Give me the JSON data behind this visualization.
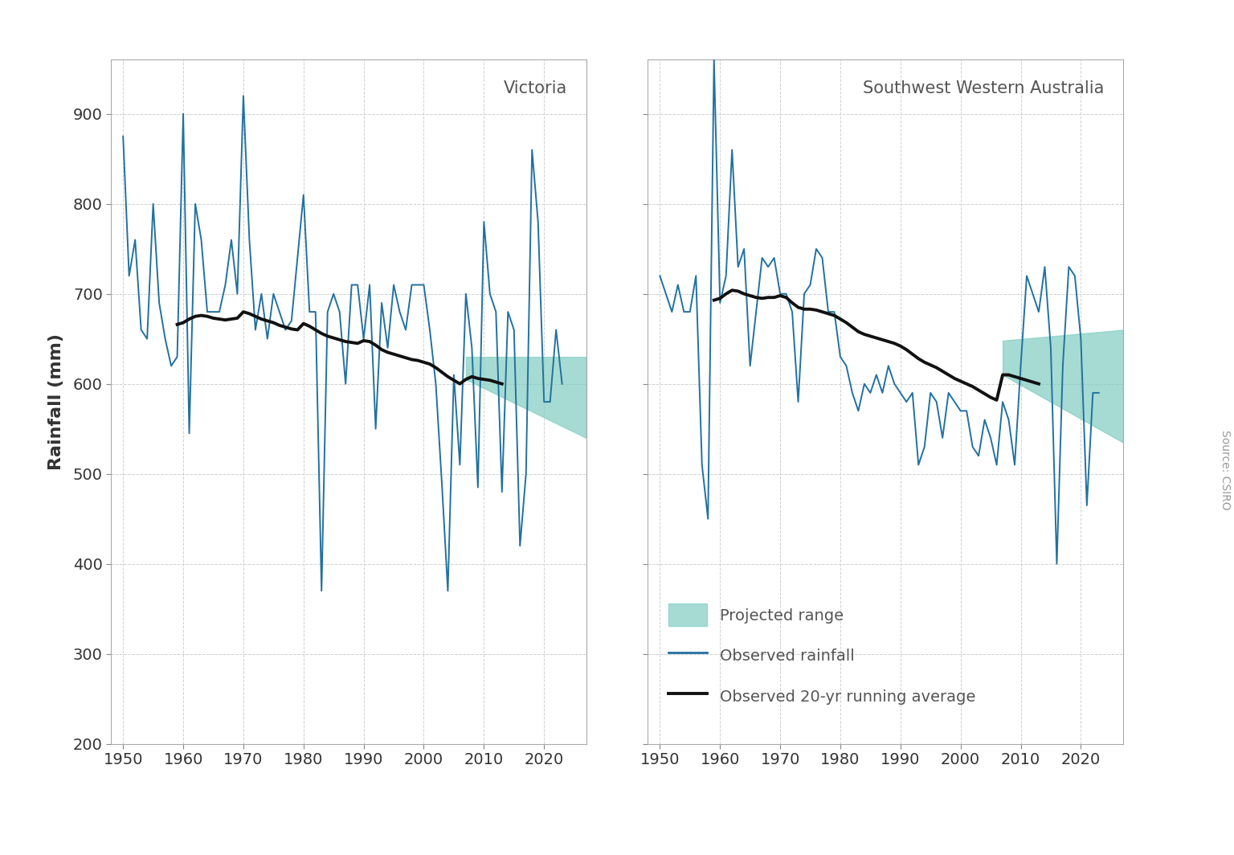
{
  "title_left": "Victoria",
  "title_right": "Southwest Western Australia",
  "ylabel": "Rainfall (mm)",
  "source_text": "Source: CSIRO",
  "ylim": [
    200,
    960
  ],
  "yticks": [
    200,
    300,
    400,
    500,
    600,
    700,
    800,
    900
  ],
  "xlim": [
    1948,
    2027
  ],
  "xticks": [
    1950,
    1960,
    1970,
    1980,
    1990,
    2000,
    2010,
    2020
  ],
  "observed_color": "#2171a0",
  "running_avg_color": "#111111",
  "projected_color": "#80cdc1",
  "background_color": "#ffffff",
  "grid_color": "#d0d0d0",
  "vic_years": [
    1950,
    1951,
    1952,
    1953,
    1954,
    1955,
    1956,
    1957,
    1958,
    1959,
    1960,
    1961,
    1962,
    1963,
    1964,
    1965,
    1966,
    1967,
    1968,
    1969,
    1970,
    1971,
    1972,
    1973,
    1974,
    1975,
    1976,
    1977,
    1978,
    1979,
    1980,
    1981,
    1982,
    1983,
    1984,
    1985,
    1986,
    1987,
    1988,
    1989,
    1990,
    1991,
    1992,
    1993,
    1994,
    1995,
    1996,
    1997,
    1998,
    1999,
    2000,
    2001,
    2002,
    2003,
    2004,
    2005,
    2006,
    2007,
    2008,
    2009,
    2010,
    2011,
    2012,
    2013,
    2014,
    2015,
    2016,
    2017,
    2018,
    2019,
    2020,
    2021,
    2022,
    2023
  ],
  "vic_rainfall": [
    875,
    720,
    760,
    660,
    650,
    800,
    690,
    650,
    620,
    630,
    900,
    545,
    800,
    760,
    680,
    680,
    680,
    710,
    760,
    700,
    920,
    760,
    660,
    700,
    650,
    700,
    680,
    660,
    670,
    740,
    810,
    680,
    680,
    370,
    680,
    700,
    680,
    600,
    710,
    710,
    650,
    710,
    550,
    690,
    640,
    710,
    680,
    660,
    710,
    710,
    710,
    660,
    600,
    490,
    370,
    610,
    510,
    700,
    640,
    485,
    780,
    700,
    680,
    480,
    680,
    660,
    420,
    500,
    860,
    780,
    580,
    580,
    660,
    600
  ],
  "vic_running_years": [
    1959,
    1960,
    1961,
    1962,
    1963,
    1964,
    1965,
    1966,
    1967,
    1968,
    1969,
    1970,
    1971,
    1972,
    1973,
    1974,
    1975,
    1976,
    1977,
    1978,
    1979,
    1980,
    1981,
    1982,
    1983,
    1984,
    1985,
    1986,
    1987,
    1988,
    1989,
    1990,
    1991,
    1992,
    1993,
    1994,
    1995,
    1996,
    1997,
    1998,
    1999,
    2000,
    2001,
    2002,
    2003,
    2004,
    2005,
    2006,
    2007,
    2008,
    2009,
    2010,
    2011,
    2012,
    2013
  ],
  "vic_running_avg": [
    666,
    668,
    672,
    675,
    676,
    675,
    673,
    672,
    671,
    672,
    673,
    680,
    678,
    675,
    672,
    670,
    668,
    665,
    663,
    661,
    660,
    667,
    664,
    660,
    656,
    653,
    651,
    649,
    647,
    646,
    645,
    648,
    647,
    643,
    638,
    635,
    633,
    631,
    629,
    627,
    626,
    624,
    622,
    618,
    613,
    608,
    604,
    600,
    605,
    608,
    606,
    605,
    604,
    602,
    600
  ],
  "vic_proj_years": [
    2007,
    2027
  ],
  "vic_proj_upper": [
    630,
    630
  ],
  "vic_proj_lower": [
    605,
    540
  ],
  "wa_years": [
    1950,
    1951,
    1952,
    1953,
    1954,
    1955,
    1956,
    1957,
    1958,
    1959,
    1960,
    1961,
    1962,
    1963,
    1964,
    1965,
    1966,
    1967,
    1968,
    1969,
    1970,
    1971,
    1972,
    1973,
    1974,
    1975,
    1976,
    1977,
    1978,
    1979,
    1980,
    1981,
    1982,
    1983,
    1984,
    1985,
    1986,
    1987,
    1988,
    1989,
    1990,
    1991,
    1992,
    1993,
    1994,
    1995,
    1996,
    1997,
    1998,
    1999,
    2000,
    2001,
    2002,
    2003,
    2004,
    2005,
    2006,
    2007,
    2008,
    2009,
    2010,
    2011,
    2012,
    2013,
    2014,
    2015,
    2016,
    2017,
    2018,
    2019,
    2020,
    2021,
    2022,
    2023
  ],
  "wa_rainfall": [
    720,
    700,
    680,
    710,
    680,
    680,
    720,
    510,
    450,
    960,
    690,
    720,
    860,
    730,
    750,
    620,
    680,
    740,
    730,
    740,
    700,
    700,
    680,
    580,
    700,
    710,
    750,
    740,
    680,
    680,
    630,
    620,
    590,
    570,
    600,
    590,
    610,
    590,
    620,
    600,
    590,
    580,
    590,
    510,
    530,
    590,
    580,
    540,
    590,
    580,
    570,
    570,
    530,
    520,
    560,
    540,
    510,
    580,
    560,
    510,
    620,
    720,
    700,
    680,
    730,
    640,
    400,
    620,
    730,
    720,
    650,
    465,
    590,
    590
  ],
  "wa_running_years": [
    1959,
    1960,
    1961,
    1962,
    1963,
    1964,
    1965,
    1966,
    1967,
    1968,
    1969,
    1970,
    1971,
    1972,
    1973,
    1974,
    1975,
    1976,
    1977,
    1978,
    1979,
    1980,
    1981,
    1982,
    1983,
    1984,
    1985,
    1986,
    1987,
    1988,
    1989,
    1990,
    1991,
    1992,
    1993,
    1994,
    1995,
    1996,
    1997,
    1998,
    1999,
    2000,
    2001,
    2002,
    2003,
    2004,
    2005,
    2006,
    2007,
    2008,
    2009,
    2010,
    2011,
    2012,
    2013
  ],
  "wa_running_avg": [
    693,
    695,
    700,
    704,
    703,
    700,
    698,
    696,
    695,
    696,
    696,
    698,
    696,
    690,
    685,
    683,
    683,
    682,
    680,
    678,
    676,
    672,
    668,
    663,
    658,
    655,
    653,
    651,
    649,
    647,
    645,
    642,
    638,
    633,
    628,
    624,
    621,
    618,
    614,
    610,
    606,
    603,
    600,
    597,
    593,
    589,
    585,
    582,
    610,
    610,
    608,
    606,
    604,
    602,
    600
  ],
  "wa_proj_years": [
    2007,
    2027
  ],
  "wa_proj_upper": [
    648,
    660
  ],
  "wa_proj_lower": [
    610,
    535
  ],
  "legend_labels": [
    "Projected range",
    "Observed rainfall",
    "Observed 20-yr running average"
  ]
}
